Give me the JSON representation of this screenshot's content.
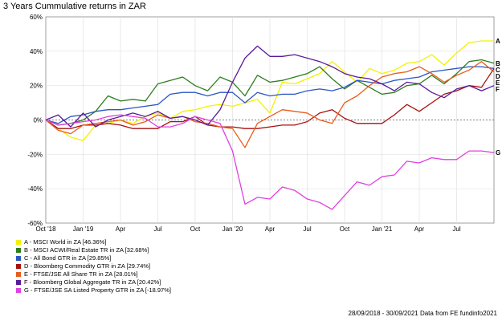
{
  "chart_data": {
    "type": "line",
    "title": "3 Years Cummulative returns in ZAR",
    "y_ticks": [
      "60%",
      "40%",
      "20%",
      "0%",
      "-20%",
      "-40%",
      "-60%"
    ],
    "ylim": [
      -60,
      60
    ],
    "x_tick_labels": [
      "Oct '18",
      "Jan '19",
      "Apr",
      "Jul",
      "Oct",
      "Jan '20",
      "Apr",
      "Jul",
      "Oct",
      "Jan '21",
      "Apr",
      "Jul"
    ],
    "x": [
      0,
      1,
      2,
      3,
      4,
      5,
      6,
      7,
      8,
      9,
      10,
      11,
      12,
      13,
      14,
      15,
      16,
      17,
      18,
      19,
      20,
      21,
      22,
      23,
      24,
      25,
      26,
      27,
      28,
      29,
      30,
      31,
      32,
      33,
      34,
      35,
      36
    ],
    "series": [
      {
        "key": "A",
        "legend": "A - MSCI World in ZA [46.36%]",
        "color": "#f2f200",
        "values": [
          0,
          -5,
          -10,
          -12,
          -3,
          -2,
          0,
          -2,
          2,
          4,
          1,
          5,
          6,
          8,
          9,
          8,
          10,
          12,
          4,
          22,
          21,
          24,
          27,
          34,
          28,
          22,
          30,
          27,
          29,
          33,
          34,
          38,
          32,
          39,
          45,
          46,
          46
        ]
      },
      {
        "key": "B",
        "legend": "B - MSCI ACWI/Real Estate TR in ZA [32.68%]",
        "color": "#2e7d1e",
        "values": [
          0,
          -3,
          -2,
          0,
          5,
          14,
          11,
          12,
          11,
          21,
          23,
          25,
          20,
          17,
          25,
          22,
          14,
          26,
          22,
          23,
          25,
          27,
          31,
          24,
          18,
          23,
          19,
          15,
          16,
          20,
          21,
          26,
          21,
          27,
          34,
          35,
          33
        ]
      },
      {
        "key": "C",
        "legend": "C - All Bond GTR in ZA [29.85%]",
        "color": "#2a56c6",
        "values": [
          0,
          -2,
          2,
          3,
          5,
          6,
          6,
          7,
          8,
          9,
          15,
          16,
          16,
          14,
          16,
          16,
          10,
          16,
          14,
          15,
          15,
          17,
          18,
          17,
          19,
          23,
          22,
          21,
          23,
          24,
          25,
          28,
          29,
          30,
          31,
          31,
          30
        ]
      },
      {
        "key": "D",
        "legend": "D - Bloomberg Commodity GTR in ZA [29.74%]",
        "color": "#a81010",
        "values": [
          0,
          -5,
          -5,
          -3,
          -3,
          -2,
          -3,
          -5,
          -5,
          -5,
          -1,
          -1,
          2,
          -3,
          -4,
          -4,
          -5,
          -5,
          -4,
          -3,
          -3,
          -1,
          4,
          6,
          1,
          -2,
          -2,
          -2,
          3,
          9,
          5,
          10,
          15,
          17,
          20,
          19,
          30
        ]
      },
      {
        "key": "E",
        "legend": "E - FTSE/JSE All Share TR in ZA [28.01%]",
        "color": "#e85c1c",
        "values": [
          0,
          -6,
          -8,
          -3,
          -2,
          -1,
          0,
          -3,
          -1,
          3,
          1,
          2,
          -1,
          -2,
          -4,
          -5,
          -16,
          -2,
          2,
          6,
          5,
          4,
          0,
          -2,
          10,
          14,
          20,
          25,
          27,
          28,
          31,
          27,
          22,
          26,
          29,
          34,
          28
        ]
      },
      {
        "key": "F",
        "legend": "F - Bloomberg Global Aggregate TR in ZA [20.42%]",
        "color": "#5a1a9a",
        "values": [
          0,
          3,
          -4,
          4,
          -4,
          0,
          2,
          4,
          2,
          5,
          1,
          2,
          0,
          -3,
          6,
          22,
          36,
          43,
          37,
          37,
          38,
          36,
          34,
          31,
          27,
          25,
          24,
          21,
          17,
          22,
          21,
          16,
          13,
          18,
          20,
          17,
          20
        ]
      },
      {
        "key": "G",
        "legend": "G - FTSE/JSE SA Listed Property GTR in ZA [-18.97%]",
        "color": "#e040e0",
        "values": [
          0,
          -3,
          -2,
          -1,
          0,
          2,
          3,
          2,
          1,
          -4,
          -4,
          -2,
          2,
          0,
          -2,
          -18,
          -49,
          -45,
          -46,
          -39,
          -41,
          -46,
          -48,
          -52,
          -44,
          -36,
          -38,
          -33,
          -32,
          -24,
          -25,
          -22,
          -23,
          -23,
          -18,
          -18,
          -19
        ]
      }
    ]
  },
  "footer": "28/09/2018 - 30/09/2021 Data from FE fundinfo2021"
}
